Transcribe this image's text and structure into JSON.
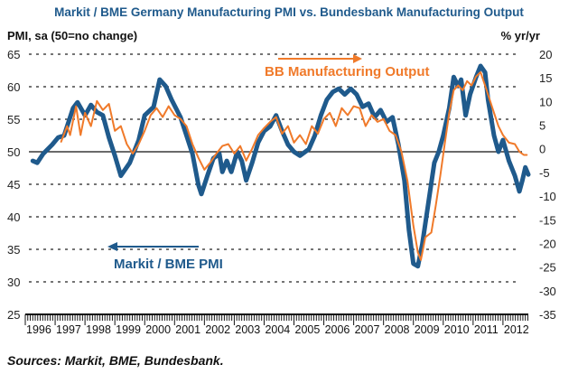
{
  "chart_data": {
    "type": "line",
    "title": "Markit / BME Germany Manufacturing PMI vs. Bundesbank Manufacturing Output",
    "ylabel_left": "PMI, sa (50=no change)",
    "ylabel_right": "% yr/yr",
    "source": "Sources: Markit, BME, Bundesbank.",
    "xlim": [
      1996,
      2012.85
    ],
    "ylim_left": [
      25,
      65
    ],
    "ylim_right": [
      -35,
      20
    ],
    "yticks_left": [
      "65",
      "60",
      "55",
      "50",
      "45",
      "40",
      "35",
      "30",
      "25"
    ],
    "yticks_left_values": [
      65,
      60,
      55,
      50,
      45,
      40,
      35,
      30,
      25
    ],
    "yticks_right": [
      "20",
      "15",
      "10",
      "5",
      "0",
      "-5",
      "-10",
      "-15",
      "-20",
      "-25",
      "-30",
      "-35"
    ],
    "yticks_right_values": [
      20,
      15,
      10,
      5,
      0,
      -5,
      -10,
      -15,
      -20,
      -25,
      -30,
      -35
    ],
    "xticks": [
      "1996",
      "1997",
      "1998",
      "1999",
      "2000",
      "2001",
      "2002",
      "2003",
      "2004",
      "2005",
      "2006",
      "2007",
      "2008",
      "2009",
      "2010",
      "2011",
      "2012"
    ],
    "grid": "horizontal dotted",
    "reference_line": {
      "axis": "left",
      "value": 50
    },
    "annotations": [
      {
        "text": "BB Manufacturing Output",
        "arrow": "right",
        "series": "BB Manufacturing Output"
      },
      {
        "text": "Markit / BME PMI",
        "arrow": "left",
        "series": "Markit / BME PMI"
      }
    ],
    "series": [
      {
        "name": "Markit / BME PMI",
        "axis": "left",
        "color": "#1f5a8c",
        "x": [
          1996.25,
          1996.4,
          1996.6,
          1996.9,
          1997.1,
          1997.3,
          1997.6,
          1997.75,
          1998.0,
          1998.2,
          1998.4,
          1998.6,
          1998.8,
          1999.0,
          1999.2,
          1999.5,
          1999.8,
          2000.0,
          2000.3,
          2000.5,
          2000.7,
          2000.9,
          2001.2,
          2001.4,
          2001.6,
          2001.8,
          2001.9,
          2002.1,
          2002.3,
          2002.5,
          2002.6,
          2002.75,
          2002.9,
          2003.1,
          2003.25,
          2003.4,
          2003.6,
          2003.8,
          2004.0,
          2004.2,
          2004.4,
          2004.6,
          2004.8,
          2005.0,
          2005.2,
          2005.5,
          2005.7,
          2005.9,
          2006.1,
          2006.3,
          2006.5,
          2006.7,
          2006.9,
          2007.1,
          2007.3,
          2007.5,
          2007.7,
          2007.9,
          2008.1,
          2008.3,
          2008.5,
          2008.7,
          2008.85,
          2009.0,
          2009.15,
          2009.3,
          2009.5,
          2009.7,
          2009.85,
          2010.0,
          2010.2,
          2010.35,
          2010.5,
          2010.6,
          2010.75,
          2010.9,
          2011.1,
          2011.25,
          2011.4,
          2011.5,
          2011.7,
          2011.85,
          2012.0,
          2012.2,
          2012.4,
          2012.55,
          2012.65,
          2012.75,
          2012.85
        ],
        "values": [
          48.6,
          48.3,
          49.7,
          51.1,
          52.2,
          52.5,
          56.7,
          57.6,
          55.6,
          57.2,
          56.1,
          55.6,
          52.2,
          49.4,
          46.3,
          48.3,
          51.8,
          55.6,
          56.9,
          61.1,
          60.1,
          58.0,
          55.3,
          52.5,
          49.7,
          44.9,
          43.5,
          46.3,
          49.0,
          49.7,
          46.9,
          48.6,
          46.9,
          50.0,
          48.6,
          45.6,
          48.3,
          51.4,
          53.2,
          53.9,
          55.6,
          53.2,
          51.1,
          50.0,
          49.4,
          50.4,
          52.5,
          55.6,
          58.0,
          59.2,
          59.7,
          58.8,
          59.7,
          58.8,
          56.9,
          57.4,
          55.3,
          56.4,
          54.6,
          55.3,
          51.1,
          45.6,
          38.0,
          32.8,
          32.4,
          35.8,
          42.1,
          48.3,
          50.0,
          52.5,
          56.7,
          61.5,
          60.1,
          61.1,
          55.6,
          58.8,
          61.5,
          63.2,
          62.2,
          58.0,
          52.5,
          50.0,
          51.8,
          48.6,
          46.3,
          43.9,
          45.6,
          47.6,
          46.5
        ]
      },
      {
        "name": "BB Manufacturing Output",
        "axis": "right",
        "color": "#f07a2a",
        "x": [
          1997.2,
          1997.4,
          1997.5,
          1997.7,
          1997.85,
          1998.0,
          1998.2,
          1998.4,
          1998.6,
          1998.8,
          1999.0,
          1999.2,
          1999.4,
          1999.6,
          1999.8,
          2000.0,
          2000.2,
          2000.4,
          2000.6,
          2000.8,
          2001.0,
          2001.2,
          2001.4,
          2001.6,
          2001.8,
          2002.0,
          2002.2,
          2002.4,
          2002.6,
          2002.8,
          2003.0,
          2003.2,
          2003.4,
          2003.6,
          2003.8,
          2004.0,
          2004.2,
          2004.4,
          2004.6,
          2004.8,
          2005.0,
          2005.2,
          2005.4,
          2005.6,
          2005.8,
          2006.0,
          2006.2,
          2006.4,
          2006.6,
          2006.8,
          2007.0,
          2007.2,
          2007.4,
          2007.6,
          2007.8,
          2008.0,
          2008.2,
          2008.4,
          2008.6,
          2008.8,
          2009.0,
          2009.15,
          2009.25,
          2009.4,
          2009.6,
          2009.75,
          2009.9,
          2010.05,
          2010.2,
          2010.35,
          2010.5,
          2010.65,
          2010.8,
          2010.95,
          2011.1,
          2011.25,
          2011.4,
          2011.55,
          2011.7,
          2011.85,
          2012.0,
          2012.2,
          2012.4,
          2012.55,
          2012.7,
          2012.8
        ],
        "values": [
          1.5,
          4.8,
          2.9,
          9.0,
          2.9,
          7.6,
          4.8,
          10.1,
          8.2,
          9.5,
          3.8,
          4.8,
          1.0,
          -1.0,
          1.0,
          3.8,
          7.1,
          8.6,
          6.7,
          9.0,
          7.1,
          6.3,
          4.8,
          1.0,
          -1.9,
          -4.4,
          -2.9,
          -1.0,
          0.6,
          1.0,
          -1.0,
          0.6,
          -2.5,
          0.0,
          2.9,
          4.4,
          5.7,
          6.7,
          3.2,
          4.8,
          1.3,
          2.9,
          1.0,
          4.8,
          3.2,
          6.3,
          7.6,
          4.8,
          8.6,
          7.1,
          9.0,
          8.6,
          4.8,
          7.1,
          5.7,
          6.3,
          3.8,
          2.9,
          -0.6,
          -6.7,
          -16.2,
          -21.9,
          -23.5,
          -18.7,
          -17.7,
          -12.0,
          -5.7,
          1.0,
          7.6,
          12.4,
          13.4,
          12.4,
          14.3,
          13.4,
          15.3,
          16.2,
          13.4,
          10.5,
          7.6,
          4.8,
          2.9,
          1.3,
          1.0,
          -0.6,
          -1.3,
          -1.3
        ]
      }
    ]
  }
}
